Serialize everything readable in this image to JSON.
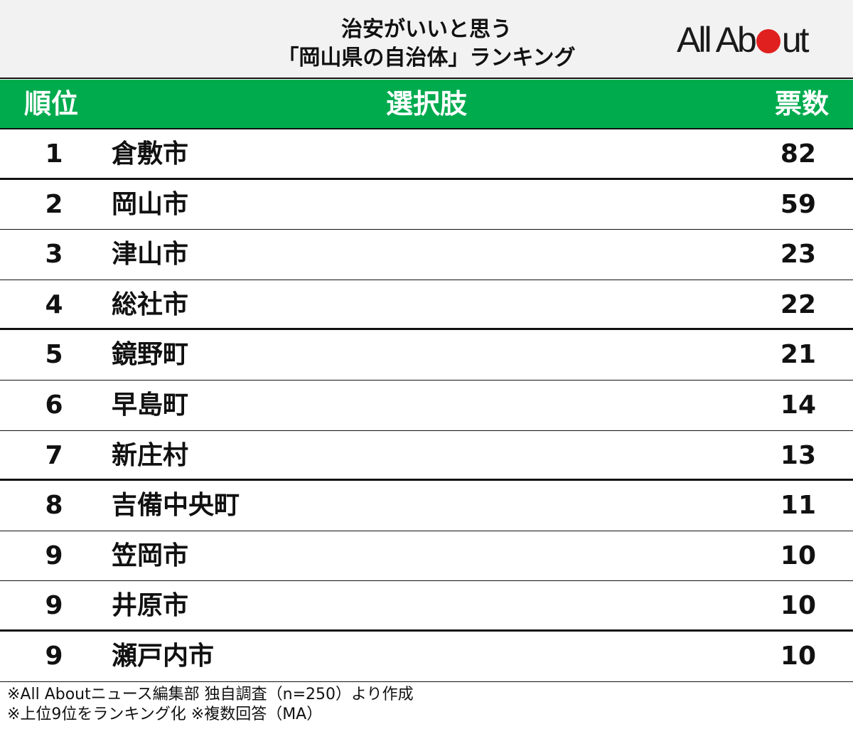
{
  "header": {
    "title_line1": "治安がいいと思う",
    "title_line2": "「岡山県の自治体」ランキング",
    "logo": {
      "part1": "All Ab",
      "part2": "ut",
      "dot_color": "#e0201f"
    }
  },
  "colors": {
    "header_bg": "#f2f2f2",
    "table_header_bg": "#00ab4e",
    "text": "#111111"
  },
  "table": {
    "columns": [
      "順位",
      "選択肢",
      "票数"
    ],
    "rows": [
      {
        "rank": "1",
        "name": "倉敷市",
        "votes": "82"
      },
      {
        "rank": "2",
        "name": "岡山市",
        "votes": "59"
      },
      {
        "rank": "3",
        "name": "津山市",
        "votes": "23"
      },
      {
        "rank": "4",
        "name": "総社市",
        "votes": "22"
      },
      {
        "rank": "5",
        "name": "鏡野町",
        "votes": "21"
      },
      {
        "rank": "6",
        "name": "早島町",
        "votes": "14"
      },
      {
        "rank": "7",
        "name": "新庄村",
        "votes": "13"
      },
      {
        "rank": "8",
        "name": "吉備中央町",
        "votes": "11"
      },
      {
        "rank": "9",
        "name": "笠岡市",
        "votes": "10"
      },
      {
        "rank": "9",
        "name": "井原市",
        "votes": "10"
      },
      {
        "rank": "9",
        "name": "瀬戸内市",
        "votes": "10"
      }
    ]
  },
  "footer": {
    "note1": "※All Aboutニュース編集部 独自調査（n=250）より作成",
    "note2": "※上位9位をランキング化 ※複数回答（MA）"
  },
  "chart_data": {
    "type": "table",
    "title": "治安がいいと思う「岡山県の自治体」ランキング",
    "columns": [
      "順位",
      "選択肢",
      "票数"
    ],
    "categories": [
      "倉敷市",
      "岡山市",
      "津山市",
      "総社市",
      "鏡野町",
      "早島町",
      "新庄村",
      "吉備中央町",
      "笠岡市",
      "井原市",
      "瀬戸内市"
    ],
    "ranks": [
      1,
      2,
      3,
      4,
      5,
      6,
      7,
      8,
      9,
      9,
      9
    ],
    "values": [
      82,
      59,
      23,
      22,
      21,
      14,
      13,
      11,
      10,
      10,
      10
    ],
    "notes": [
      "※All Aboutニュース編集部 独自調査（n=250）より作成",
      "※上位9位をランキング化 ※複数回答（MA）"
    ]
  }
}
